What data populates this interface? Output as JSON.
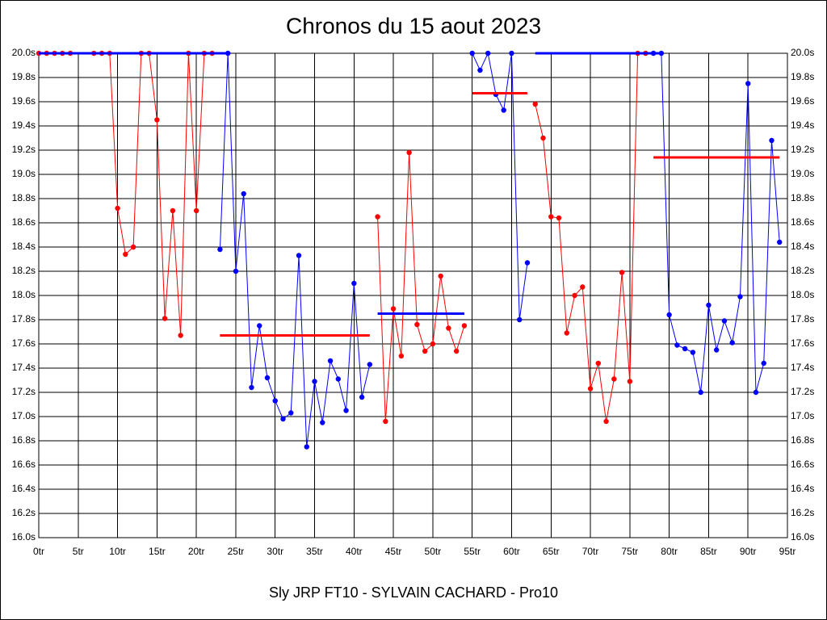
{
  "chart_data": {
    "type": "line",
    "title": "Chronos du 15 aout 2023",
    "xlabel": "Sly JRP FT10 - SYLVAIN CACHARD - Pro10",
    "xlim": [
      0,
      95
    ],
    "ylim": [
      16.0,
      20.0
    ],
    "grid": true,
    "xticks": [
      {
        "value": 0,
        "label": "0tr"
      },
      {
        "value": 5,
        "label": "5tr"
      },
      {
        "value": 10,
        "label": "10tr"
      },
      {
        "value": 15,
        "label": "15tr"
      },
      {
        "value": 20,
        "label": "20tr"
      },
      {
        "value": 25,
        "label": "25tr"
      },
      {
        "value": 30,
        "label": "30tr"
      },
      {
        "value": 35,
        "label": "35tr"
      },
      {
        "value": 40,
        "label": "40tr"
      },
      {
        "value": 45,
        "label": "45tr"
      },
      {
        "value": 50,
        "label": "50tr"
      },
      {
        "value": 55,
        "label": "55tr"
      },
      {
        "value": 60,
        "label": "60tr"
      },
      {
        "value": 65,
        "label": "65tr"
      },
      {
        "value": 70,
        "label": "70tr"
      },
      {
        "value": 75,
        "label": "75tr"
      },
      {
        "value": 80,
        "label": "80tr"
      },
      {
        "value": 85,
        "label": "85tr"
      },
      {
        "value": 90,
        "label": "90tr"
      },
      {
        "value": 95,
        "label": "95tr"
      }
    ],
    "yticks": [
      {
        "value": 16.0,
        "label": "16.0s"
      },
      {
        "value": 16.2,
        "label": "16.2s"
      },
      {
        "value": 16.4,
        "label": "16.4s"
      },
      {
        "value": 16.6,
        "label": "16.6s"
      },
      {
        "value": 16.8,
        "label": "16.8s"
      },
      {
        "value": 17.0,
        "label": "17.0s"
      },
      {
        "value": 17.2,
        "label": "17.2s"
      },
      {
        "value": 17.4,
        "label": "17.4s"
      },
      {
        "value": 17.6,
        "label": "17.6s"
      },
      {
        "value": 17.8,
        "label": "17.8s"
      },
      {
        "value": 18.0,
        "label": "18.0s"
      },
      {
        "value": 18.2,
        "label": "18.2s"
      },
      {
        "value": 18.4,
        "label": "18.4s"
      },
      {
        "value": 18.6,
        "label": "18.6s"
      },
      {
        "value": 18.8,
        "label": "18.8s"
      },
      {
        "value": 19.0,
        "label": "19.0s"
      },
      {
        "value": 19.2,
        "label": "19.2s"
      },
      {
        "value": 19.4,
        "label": "19.4s"
      },
      {
        "value": 19.6,
        "label": "19.6s"
      },
      {
        "value": 19.8,
        "label": "19.8s"
      },
      {
        "value": 20.0,
        "label": "20.0s"
      }
    ],
    "series": [
      {
        "color": "#ff0000",
        "x": [
          0,
          1,
          2,
          3,
          4,
          5,
          6,
          7,
          8,
          9,
          10,
          11,
          12,
          13,
          14,
          15,
          16,
          17,
          18,
          19,
          20,
          21,
          22
        ],
        "values": [
          20.0,
          20.0,
          20.0,
          20.0,
          20.0,
          null,
          null,
          20.0,
          20.0,
          20.0,
          18.72,
          18.34,
          18.4,
          20.0,
          20.0,
          19.45,
          17.81,
          18.7,
          17.67,
          20.0,
          18.7,
          20.0,
          20.0
        ]
      },
      {
        "color": "#0000ff",
        "x": [
          23,
          24,
          25,
          26,
          27,
          28,
          29,
          30,
          31,
          32,
          33,
          34,
          35,
          36,
          37,
          38,
          39,
          40,
          41,
          42
        ],
        "values": [
          18.38,
          20.0,
          18.2,
          18.84,
          17.24,
          17.75,
          17.32,
          17.13,
          16.98,
          17.03,
          18.33,
          16.75,
          17.29,
          16.95,
          17.46,
          17.31,
          17.05,
          18.1,
          17.16,
          17.43
        ]
      },
      {
        "color": "#ff0000",
        "x": [
          43,
          44,
          45,
          46,
          47,
          48,
          49,
          50,
          51,
          52,
          53,
          54
        ],
        "values": [
          18.65,
          16.96,
          17.89,
          17.5,
          19.18,
          17.76,
          17.54,
          17.6,
          18.16,
          17.73,
          17.54,
          17.75
        ]
      },
      {
        "color": "#0000ff",
        "x": [
          55,
          56,
          57,
          58,
          59,
          60,
          61,
          62
        ],
        "values": [
          20.0,
          19.86,
          20.0,
          19.66,
          19.53,
          20.0,
          17.8,
          18.27
        ]
      },
      {
        "color": "#ff0000",
        "x": [
          63,
          64,
          65,
          66,
          67,
          68,
          69,
          70,
          71,
          72,
          73,
          74,
          75,
          76,
          77
        ],
        "values": [
          19.58,
          19.3,
          18.65,
          18.64,
          17.69,
          18.0,
          18.07,
          17.23,
          17.44,
          16.96,
          17.31,
          18.19,
          17.29,
          20.0,
          20.0
        ]
      },
      {
        "color": "#0000ff",
        "x": [
          78,
          79,
          80,
          81,
          82,
          83,
          84,
          85,
          86,
          87,
          88,
          89,
          90,
          91,
          92,
          93,
          94
        ],
        "values": [
          20.0,
          20.0,
          17.84,
          17.59,
          17.56,
          17.53,
          17.2,
          17.92,
          17.55,
          17.79,
          17.61,
          17.99,
          19.75,
          17.2,
          17.44,
          19.28,
          18.44
        ]
      }
    ],
    "reference_lines": [
      {
        "color": "#0000ff",
        "value": 20.0,
        "x": [
          0,
          24.3
        ]
      },
      {
        "color": "#ff0000",
        "value": 17.67,
        "x": [
          23,
          42
        ]
      },
      {
        "color": "#0000ff",
        "value": 17.85,
        "x": [
          43,
          54
        ]
      },
      {
        "color": "#ff0000",
        "value": 19.67,
        "x": [
          55,
          62
        ]
      },
      {
        "color": "#0000ff",
        "value": 20.0,
        "x": [
          63,
          79
        ]
      },
      {
        "color": "#ff0000",
        "value": 19.14,
        "x": [
          78,
          94
        ]
      }
    ]
  }
}
